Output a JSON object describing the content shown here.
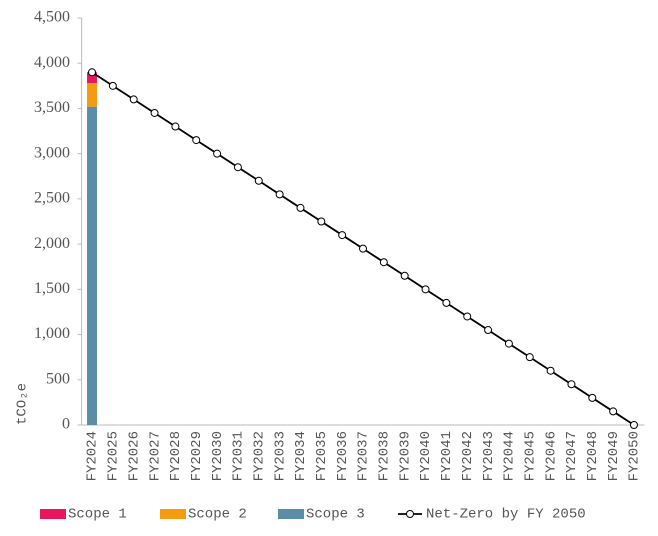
{
  "chart_data": {
    "type": "bar",
    "stacked": true,
    "y_label": "tCO₂e",
    "categories": [
      "FY2024",
      "FY2025",
      "FY2026",
      "FY2027",
      "FY2028",
      "FY2029",
      "FY2030",
      "FY2031",
      "FY2032",
      "FY2033",
      "FY2034",
      "FY2035",
      "FY2036",
      "FY2037",
      "FY2038",
      "FY2039",
      "FY2040",
      "FY2041",
      "FY2042",
      "FY2043",
      "FY2044",
      "FY2045",
      "FY2046",
      "FY2047",
      "FY2048",
      "FY2049",
      "FY2050"
    ],
    "series": [
      {
        "name": "Scope 1",
        "color": "#e8175d",
        "values": [
          120,
          null,
          null,
          null,
          null,
          null,
          null,
          null,
          null,
          null,
          null,
          null,
          null,
          null,
          null,
          null,
          null,
          null,
          null,
          null,
          null,
          null,
          null,
          null,
          null,
          null,
          null
        ]
      },
      {
        "name": "Scope 2",
        "color": "#f39c12",
        "values": [
          260,
          null,
          null,
          null,
          null,
          null,
          null,
          null,
          null,
          null,
          null,
          null,
          null,
          null,
          null,
          null,
          null,
          null,
          null,
          null,
          null,
          null,
          null,
          null,
          null,
          null,
          null
        ]
      },
      {
        "name": "Scope 3",
        "color": "#5b8ea6",
        "values": [
          3520,
          null,
          null,
          null,
          null,
          null,
          null,
          null,
          null,
          null,
          null,
          null,
          null,
          null,
          null,
          null,
          null,
          null,
          null,
          null,
          null,
          null,
          null,
          null,
          null,
          null,
          null
        ]
      },
      {
        "name": "Net-Zero by FY 2050",
        "color": "#000000",
        "type": "line",
        "values": [
          3900,
          3750,
          3600,
          3450,
          3300,
          3150,
          3000,
          2850,
          2700,
          2550,
          2400,
          2250,
          2100,
          1950,
          1800,
          1650,
          1500,
          1350,
          1200,
          1050,
          900,
          750,
          600,
          450,
          300,
          150,
          0
        ]
      }
    ],
    "ylim": [
      0,
      4500
    ],
    "yticks": [
      0,
      500,
      {
        "value": 1000,
        "label": "1,000"
      },
      {
        "value": 1500,
        "label": "1,500"
      },
      {
        "value": 2000,
        "label": "2,000"
      },
      {
        "value": 2500,
        "label": "2,500"
      },
      {
        "value": 3000,
        "label": "3,000"
      },
      {
        "value": 3500,
        "label": "3,500"
      },
      {
        "value": 4000,
        "label": "4,000"
      },
      {
        "value": 4500,
        "label": "4,500"
      }
    ],
    "legend": "bottom"
  }
}
